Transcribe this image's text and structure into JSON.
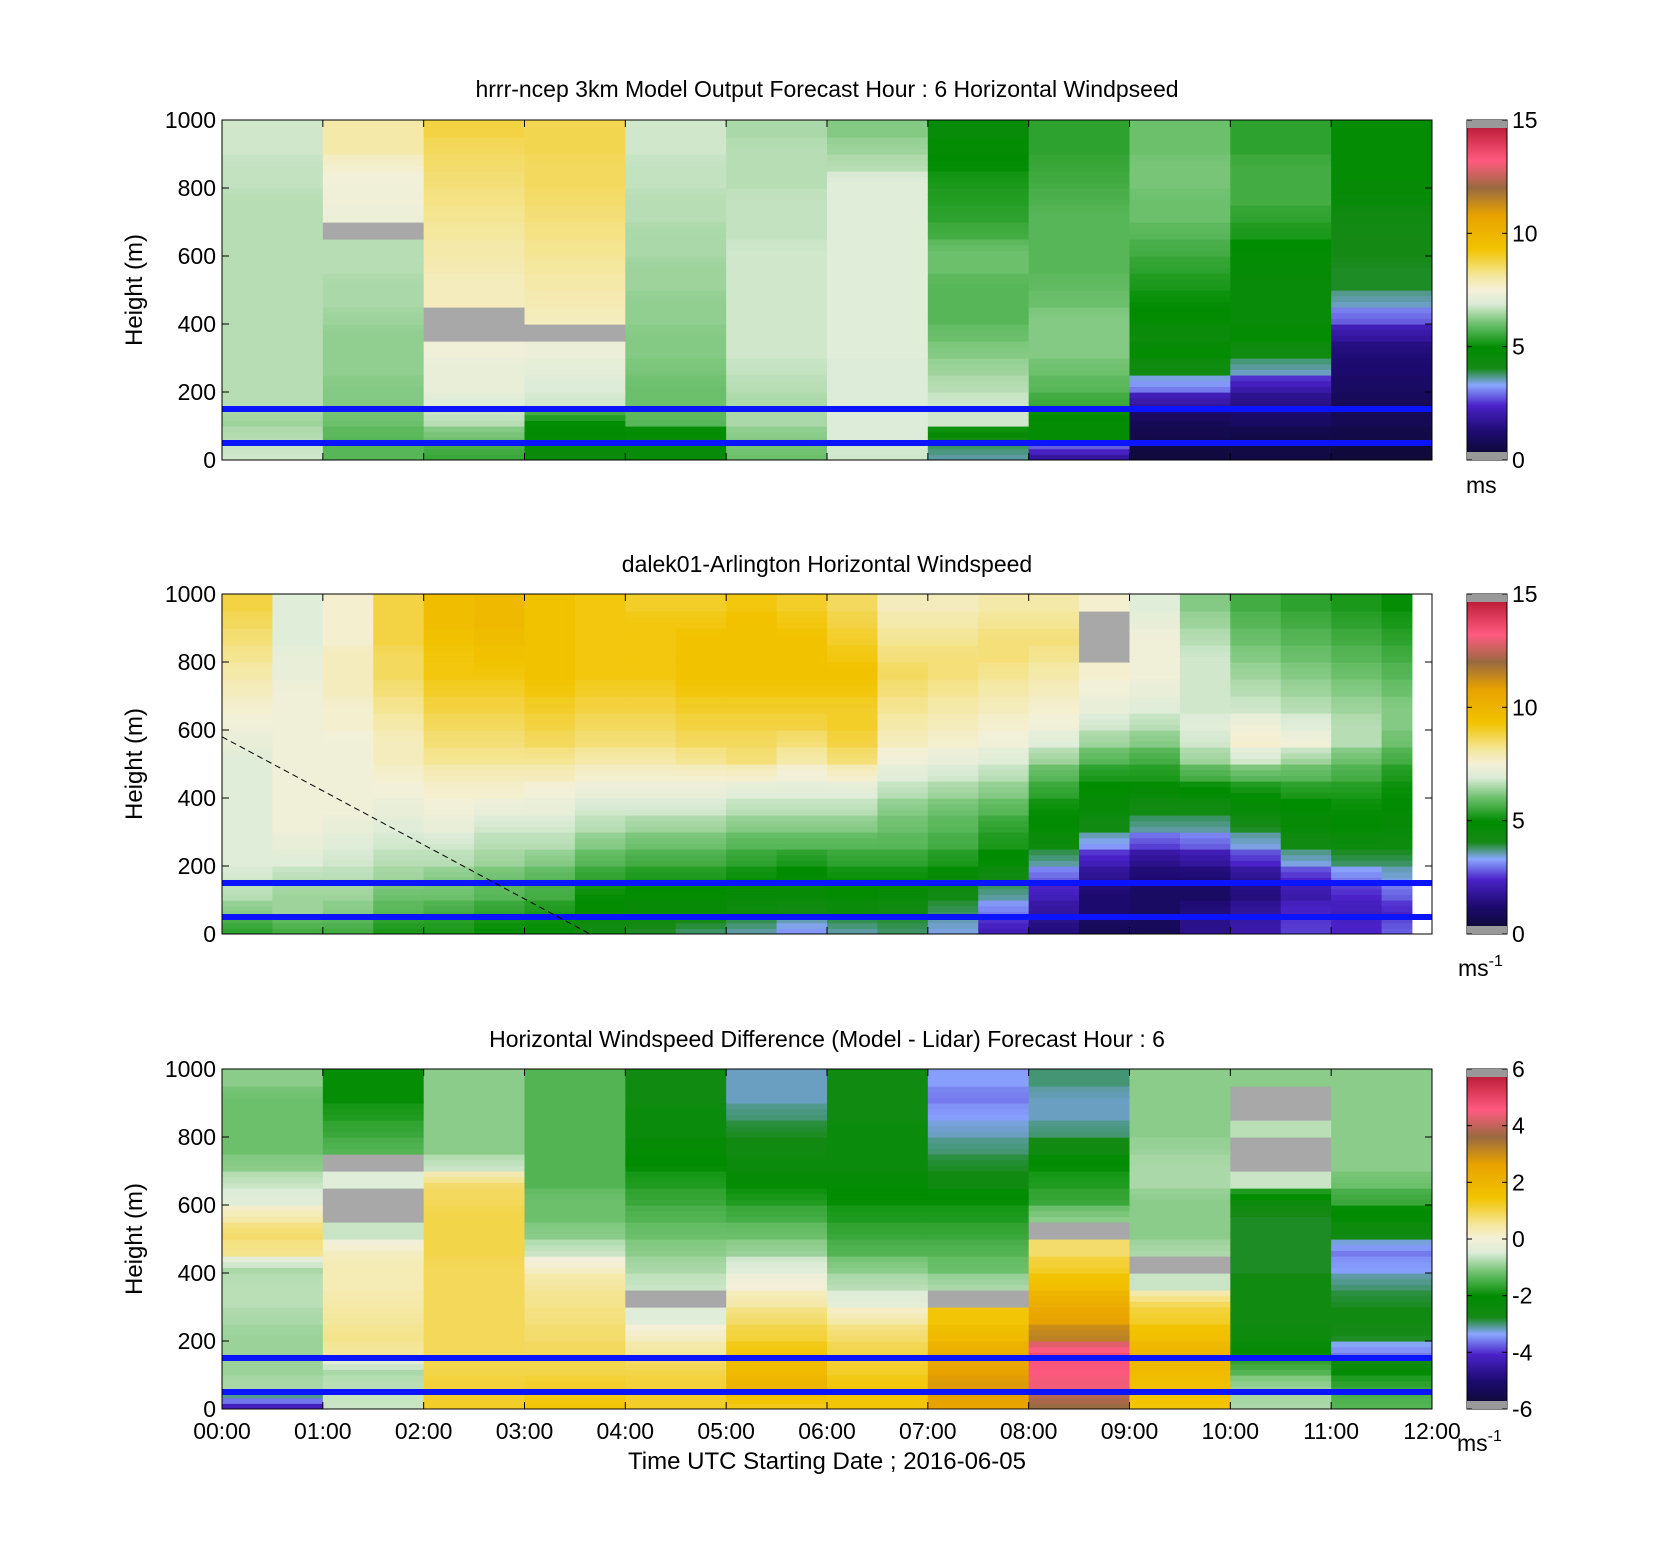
{
  "chart_data": [
    {
      "type": "heatmap",
      "title": "hrrr-ncep 3km Model Output   Forecast Hour : 6 Horizontal Windpseed",
      "ylabel": "Height (m)",
      "xlabel": "",
      "yticks": [
        "0",
        "200",
        "400",
        "600",
        "800",
        "1000"
      ],
      "xticks": [],
      "ylim": [
        0,
        1000
      ],
      "xlim_hours": [
        0,
        12
      ],
      "colorbar": {
        "min": 0,
        "max": 15,
        "ticks": [
          "0",
          "5",
          "10",
          "15"
        ],
        "unit": "ms",
        "unit_sup": ""
      },
      "levels": [
        0,
        50,
        100,
        150,
        200,
        250,
        300,
        350,
        400,
        450,
        500,
        550,
        600,
        650,
        700,
        750,
        800,
        850,
        900,
        950,
        1000
      ],
      "z": [
        [
          6.8,
          5.8,
          5.5,
          4.5,
          4.6,
          6.0,
          6.8,
          3.6,
          1.8,
          0.4,
          0.5,
          0.3
        ],
        [
          6.6,
          5.8,
          6.0,
          4.8,
          4.6,
          6.2,
          6.9,
          4.2,
          4.8,
          0.6,
          0.5,
          0.5
        ],
        [
          6.4,
          6.0,
          6.6,
          5.0,
          5.8,
          6.5,
          6.9,
          6.8,
          4.8,
          0.8,
          1.0,
          0.8
        ],
        [
          6.6,
          6.2,
          7.0,
          6.8,
          6.0,
          6.5,
          6.9,
          6.8,
          5.5,
          1.8,
          1.5,
          0.8
        ],
        [
          6.6,
          6.2,
          7.2,
          6.9,
          6.0,
          6.6,
          6.9,
          6.6,
          5.8,
          3.0,
          2.0,
          1.0
        ],
        [
          6.6,
          6.3,
          7.2,
          7.1,
          6.1,
          6.7,
          6.9,
          6.4,
          6.0,
          4.2,
          3.5,
          1.2
        ],
        [
          6.6,
          6.3,
          7.4,
          7.3,
          6.2,
          6.8,
          7.0,
          6.2,
          6.2,
          4.8,
          4.2,
          1.3
        ],
        [
          6.6,
          6.3,
          0.05,
          0.05,
          6.2,
          6.8,
          7.0,
          6.0,
          6.2,
          4.4,
          4.8,
          1.8
        ],
        [
          6.6,
          6.4,
          0.05,
          7.8,
          6.3,
          6.8,
          7.0,
          5.8,
          6.2,
          4.8,
          4.6,
          2.8
        ],
        [
          6.6,
          6.5,
          7.8,
          7.9,
          6.3,
          6.8,
          7.0,
          5.8,
          6.0,
          5.0,
          4.6,
          3.5
        ],
        [
          6.6,
          6.5,
          7.8,
          8.0,
          6.4,
          6.8,
          7.0,
          5.8,
          5.9,
          5.2,
          4.6,
          4.0
        ],
        [
          6.6,
          6.6,
          7.9,
          8.1,
          6.4,
          6.8,
          7.0,
          6.0,
          5.8,
          5.4,
          4.7,
          4.0
        ],
        [
          6.6,
          6.6,
          8.0,
          8.2,
          6.5,
          6.8,
          7.0,
          6.0,
          5.8,
          5.6,
          4.8,
          4.1
        ],
        [
          6.6,
          0.05,
          8.1,
          8.3,
          6.5,
          6.7,
          7.0,
          5.6,
          5.8,
          5.8,
          5.2,
          4.1
        ],
        [
          6.6,
          7.3,
          8.2,
          8.4,
          6.6,
          6.7,
          7.0,
          5.4,
          5.8,
          6.0,
          5.4,
          4.2
        ],
        [
          6.6,
          7.4,
          8.3,
          8.5,
          6.6,
          6.7,
          7.0,
          5.3,
          5.7,
          6.0,
          5.6,
          4.6
        ],
        [
          6.7,
          7.4,
          8.4,
          8.6,
          6.7,
          6.6,
          7.0,
          5.2,
          5.6,
          6.1,
          5.6,
          4.7
        ],
        [
          6.7,
          7.6,
          8.5,
          8.6,
          6.7,
          6.6,
          6.6,
          5.0,
          5.5,
          6.1,
          5.6,
          4.8
        ],
        [
          6.8,
          8.0,
          8.6,
          8.7,
          6.8,
          6.6,
          6.4,
          4.8,
          5.4,
          6.0,
          5.4,
          4.8
        ],
        [
          6.8,
          8.0,
          8.8,
          8.7,
          6.8,
          6.5,
          6.2,
          4.6,
          5.4,
          6.0,
          5.4,
          4.8
        ]
      ],
      "hlines": [
        50,
        150
      ]
    },
    {
      "type": "heatmap",
      "title": "dalek01-Arlington  Horizontal Windspeed",
      "ylabel": "Height (m)",
      "xlabel": "",
      "yticks": [
        "0",
        "200",
        "400",
        "600",
        "800",
        "1000"
      ],
      "xticks": [],
      "ylim": [
        0,
        1000
      ],
      "xlim_hours": [
        0,
        12
      ],
      "data_end_hour": 11.8,
      "colorbar": {
        "min": 0,
        "max": 15,
        "ticks": [
          "0",
          "5",
          "10",
          "15"
        ],
        "unit": "ms",
        "unit_sup": "-1"
      },
      "columns_hours": [
        0,
        0.5,
        1,
        1.5,
        2,
        2.5,
        3,
        3.5,
        4,
        4.5,
        5,
        5.5,
        6,
        6.5,
        7,
        7.5,
        8,
        8.5,
        9,
        9.5,
        10,
        10.5,
        11,
        11.5
      ],
      "levels": [
        0,
        50,
        100,
        150,
        200,
        250,
        300,
        350,
        400,
        450,
        500,
        550,
        600,
        650,
        700,
        750,
        800,
        850,
        900,
        950,
        1000
      ],
      "z": [
        [
          5.4,
          5.6,
          5.6,
          5.2,
          5.2,
          5.0,
          5.0,
          4.2,
          4.0,
          3.8,
          3.6,
          3.2,
          3.6,
          3.8,
          3.4,
          2.2,
          1.4,
          0.8,
          0.8,
          1.6,
          2.0,
          2.6,
          2.4,
          2.8
        ],
        [
          6.2,
          6.4,
          6.2,
          5.8,
          5.6,
          5.4,
          5.2,
          4.8,
          4.6,
          4.6,
          4.4,
          4.2,
          4.4,
          4.2,
          3.8,
          3.0,
          1.8,
          1.2,
          1.0,
          1.4,
          1.8,
          2.4,
          2.2,
          2.4
        ],
        [
          6.6,
          6.4,
          6.4,
          6.0,
          6.0,
          5.8,
          5.6,
          5.0,
          4.8,
          4.8,
          4.6,
          4.6,
          4.8,
          4.6,
          4.2,
          3.6,
          2.2,
          1.2,
          1.0,
          1.0,
          1.4,
          2.0,
          2.4,
          2.8
        ],
        [
          6.8,
          6.6,
          6.6,
          6.4,
          6.2,
          6.0,
          5.8,
          5.4,
          5.2,
          5.2,
          5.0,
          4.8,
          5.0,
          5.0,
          4.6,
          4.2,
          2.8,
          1.6,
          1.2,
          1.2,
          1.6,
          2.4,
          3.0,
          3.4
        ],
        [
          7.0,
          7.0,
          6.8,
          6.6,
          6.6,
          6.4,
          6.2,
          5.8,
          5.6,
          5.6,
          5.4,
          5.2,
          5.4,
          5.4,
          5.2,
          4.8,
          3.6,
          2.2,
          1.6,
          1.8,
          2.4,
          3.4,
          3.8,
          3.8
        ],
        [
          7.0,
          7.2,
          7.0,
          6.8,
          6.8,
          6.6,
          6.6,
          6.2,
          6.0,
          6.0,
          5.8,
          5.8,
          5.8,
          5.8,
          5.6,
          5.2,
          4.4,
          3.2,
          2.6,
          2.8,
          3.4,
          4.2,
          4.4,
          4.4
        ],
        [
          7.0,
          7.4,
          7.2,
          7.0,
          7.2,
          6.8,
          6.8,
          6.6,
          6.4,
          6.4,
          6.2,
          6.2,
          6.2,
          6.0,
          5.8,
          5.4,
          4.8,
          4.2,
          3.6,
          3.6,
          4.0,
          4.6,
          4.8,
          4.6
        ],
        [
          7.0,
          7.4,
          7.4,
          7.2,
          7.4,
          7.2,
          7.2,
          6.8,
          6.8,
          6.8,
          6.6,
          6.6,
          6.6,
          6.2,
          6.0,
          5.8,
          5.0,
          4.6,
          4.2,
          4.2,
          4.6,
          4.8,
          5.0,
          4.8
        ],
        [
          7.0,
          7.4,
          7.4,
          7.4,
          7.6,
          7.6,
          7.4,
          7.2,
          7.2,
          7.2,
          7.0,
          7.0,
          7.0,
          6.6,
          6.4,
          6.2,
          5.4,
          4.8,
          4.6,
          4.8,
          5.0,
          5.2,
          5.2,
          5.0
        ],
        [
          7.0,
          7.4,
          7.4,
          7.6,
          7.8,
          7.8,
          7.8,
          7.6,
          7.6,
          7.6,
          7.6,
          7.4,
          7.6,
          7.0,
          6.8,
          6.6,
          5.8,
          5.2,
          5.2,
          5.6,
          5.8,
          5.8,
          5.6,
          5.2
        ],
        [
          7.0,
          7.4,
          7.4,
          7.8,
          8.2,
          8.2,
          8.2,
          8.0,
          8.0,
          8.2,
          8.4,
          8.0,
          8.4,
          7.4,
          7.2,
          7.0,
          6.4,
          5.8,
          5.6,
          6.4,
          6.8,
          6.4,
          6.0,
          5.6
        ],
        [
          7.2,
          7.4,
          7.4,
          7.8,
          8.4,
          8.4,
          8.6,
          8.4,
          8.4,
          8.6,
          8.6,
          8.4,
          8.8,
          7.8,
          7.6,
          7.4,
          7.0,
          6.4,
          6.2,
          6.8,
          7.6,
          7.4,
          6.6,
          6.0
        ],
        [
          7.4,
          7.4,
          7.6,
          8.0,
          8.6,
          8.6,
          8.8,
          8.6,
          8.6,
          8.8,
          8.8,
          8.8,
          9.0,
          8.0,
          7.8,
          7.6,
          7.4,
          6.8,
          6.6,
          7.0,
          7.4,
          7.0,
          6.6,
          6.2
        ],
        [
          7.6,
          7.4,
          7.6,
          8.2,
          8.8,
          8.8,
          9.0,
          8.8,
          8.8,
          9.0,
          9.0,
          9.0,
          9.0,
          8.2,
          8.0,
          7.8,
          7.6,
          7.2,
          7.0,
          6.8,
          6.8,
          6.6,
          6.4,
          6.2
        ],
        [
          7.8,
          7.4,
          7.8,
          8.4,
          9.0,
          9.0,
          9.2,
          9.0,
          9.0,
          9.2,
          9.2,
          9.2,
          9.2,
          8.4,
          8.2,
          8.0,
          7.8,
          7.4,
          7.2,
          6.8,
          6.6,
          6.4,
          6.2,
          6.0
        ],
        [
          8.0,
          7.2,
          7.8,
          8.6,
          9.2,
          9.2,
          9.4,
          9.2,
          9.2,
          9.4,
          9.4,
          9.4,
          9.4,
          8.6,
          8.4,
          8.2,
          8.0,
          7.6,
          7.4,
          6.8,
          6.4,
          6.2,
          6.0,
          5.8
        ],
        [
          8.2,
          7.2,
          7.8,
          8.6,
          9.2,
          9.4,
          9.4,
          9.2,
          9.2,
          9.4,
          9.4,
          9.4,
          9.2,
          8.4,
          8.4,
          8.4,
          8.2,
          0.05,
          7.4,
          6.8,
          6.2,
          6.0,
          5.8,
          5.6
        ],
        [
          8.4,
          7.0,
          7.6,
          8.8,
          9.4,
          9.6,
          9.4,
          9.2,
          9.2,
          9.4,
          9.4,
          9.4,
          9.0,
          8.2,
          8.2,
          8.4,
          8.4,
          0.05,
          7.4,
          6.6,
          6.0,
          5.8,
          5.6,
          5.4
        ],
        [
          8.6,
          7.0,
          7.6,
          8.8,
          9.6,
          9.8,
          9.4,
          9.2,
          9.2,
          9.2,
          9.4,
          9.2,
          8.8,
          8.0,
          8.0,
          8.2,
          8.2,
          0.05,
          7.2,
          6.4,
          5.8,
          5.6,
          5.4,
          5.2
        ],
        [
          8.8,
          7.0,
          7.6,
          8.8,
          9.6,
          9.8,
          9.4,
          9.2,
          9.0,
          9.0,
          9.2,
          9.0,
          8.6,
          7.8,
          7.8,
          8.0,
          8.0,
          7.6,
          7.0,
          6.2,
          5.6,
          5.4,
          5.2,
          5.0
        ]
      ],
      "hlines": [
        50,
        150
      ],
      "dashed_line": {
        "from": [
          0,
          580
        ],
        "to": [
          3.65,
          0
        ]
      }
    },
    {
      "type": "heatmap",
      "title": "Horizontal Windspeed Difference (Model - Lidar) Forecast Hour : 6",
      "ylabel": "Height (m)",
      "xlabel": "Time UTC  Starting Date ; 2016-06-05",
      "yticks": [
        "0",
        "200",
        "400",
        "600",
        "800",
        "1000"
      ],
      "xticks": [
        "00:00",
        "01:00",
        "02:00",
        "03:00",
        "04:00",
        "05:00",
        "06:00",
        "07:00",
        "08:00",
        "09:00",
        "10:00",
        "11:00",
        "12:00"
      ],
      "ylim": [
        0,
        1000
      ],
      "xlim_hours": [
        0,
        12
      ],
      "colorbar": {
        "min": -6,
        "max": 6,
        "ticks": [
          "-6",
          "-4",
          "-2",
          "0",
          "2",
          "4",
          "6"
        ],
        "unit": "ms",
        "unit_sup": "-1"
      },
      "levels": [
        0,
        50,
        100,
        150,
        200,
        250,
        300,
        350,
        400,
        450,
        500,
        550,
        600,
        650,
        700,
        750,
        800,
        850,
        900,
        950,
        1000
      ],
      "z": [
        [
          -4.2,
          -0.6,
          1.2,
          1.4,
          1.2,
          1.3,
          1.4,
          2.6,
          3.6,
          1.4,
          -0.8,
          -1.4
        ],
        [
          -0.8,
          -0.7,
          1.1,
          1.2,
          1.1,
          2.0,
          1.4,
          2.8,
          4.4,
          1.6,
          -0.9,
          -1.6
        ],
        [
          -0.9,
          -0.8,
          1.0,
          1.0,
          1.0,
          1.8,
          1.2,
          2.6,
          4.6,
          1.8,
          -1.4,
          -2.2
        ],
        [
          -0.9,
          0.5,
          0.9,
          0.9,
          0.5,
          1.4,
          1.0,
          2.2,
          4.8,
          2.0,
          -2.2,
          -3.6
        ],
        [
          -0.9,
          0.6,
          0.9,
          0.8,
          0.2,
          1.1,
          0.8,
          1.8,
          3.2,
          1.6,
          -2.5,
          -2.8
        ],
        [
          -0.8,
          0.5,
          0.9,
          0.7,
          -0.4,
          0.8,
          0.4,
          1.4,
          2.6,
          1.2,
          -2.6,
          -2.6
        ],
        [
          -0.7,
          0.4,
          0.9,
          0.6,
          0.05,
          0.4,
          -0.3,
          0.05,
          2.2,
          0.9,
          -2.6,
          -2.8
        ],
        [
          -0.7,
          0.3,
          0.9,
          0.5,
          -0.6,
          0.0,
          -0.7,
          -0.8,
          1.6,
          -0.6,
          -2.6,
          -3.0
        ],
        [
          -0.8,
          0.3,
          0.9,
          0.2,
          -0.8,
          -0.4,
          -1.0,
          -1.2,
          1.2,
          0.05,
          -2.8,
          -3.4
        ],
        [
          0.6,
          0.2,
          1.0,
          -0.6,
          -1.0,
          -0.9,
          -1.4,
          -1.4,
          0.8,
          -0.8,
          -2.8,
          -3.6
        ],
        [
          0.8,
          -0.6,
          1.0,
          -1.0,
          -1.2,
          -1.2,
          -1.6,
          -1.6,
          0.05,
          -1.0,
          -2.8,
          -2.6
        ],
        [
          0.4,
          0.05,
          1.0,
          -1.2,
          -1.4,
          -1.5,
          -1.8,
          -1.8,
          -1.0,
          -1.0,
          -2.8,
          -2.2
        ],
        [
          -0.4,
          0.05,
          0.9,
          -1.2,
          -1.6,
          -1.8,
          -2.0,
          -2.0,
          -1.6,
          -1.0,
          -2.4,
          -1.6
        ],
        [
          -0.6,
          -0.4,
          0.8,
          -1.4,
          -1.8,
          -2.2,
          -2.2,
          -2.6,
          -1.8,
          -0.8,
          -0.6,
          -1.2
        ],
        [
          -1.0,
          0.05,
          -0.6,
          -1.4,
          -2.0,
          -2.4,
          -2.4,
          -2.8,
          -2.0,
          -0.8,
          0.05,
          -1.0
        ],
        [
          -1.2,
          -1.4,
          -1.0,
          -1.4,
          -2.2,
          -2.6,
          -2.4,
          -3.0,
          -2.6,
          -0.9,
          0.05,
          -1.0
        ],
        [
          -1.2,
          -1.6,
          -1.0,
          -1.4,
          -2.4,
          -2.8,
          -2.4,
          -3.2,
          -3.0,
          -1.0,
          -0.7,
          -1.0
        ],
        [
          -1.2,
          -1.8,
          -1.0,
          -1.4,
          -2.4,
          -3.0,
          -2.6,
          -3.4,
          -3.2,
          -1.0,
          0.05,
          -1.0
        ],
        [
          -1.2,
          -2.0,
          -1.0,
          -1.4,
          -2.6,
          -3.2,
          -2.6,
          -3.6,
          -3.2,
          -1.0,
          0.05,
          -1.0
        ],
        [
          -1.0,
          -2.0,
          -1.0,
          -1.4,
          -2.6,
          -3.2,
          -2.6,
          -3.4,
          -3.0,
          -1.0,
          -1.0,
          -1.0
        ]
      ],
      "hlines": [
        50,
        150
      ]
    }
  ]
}
